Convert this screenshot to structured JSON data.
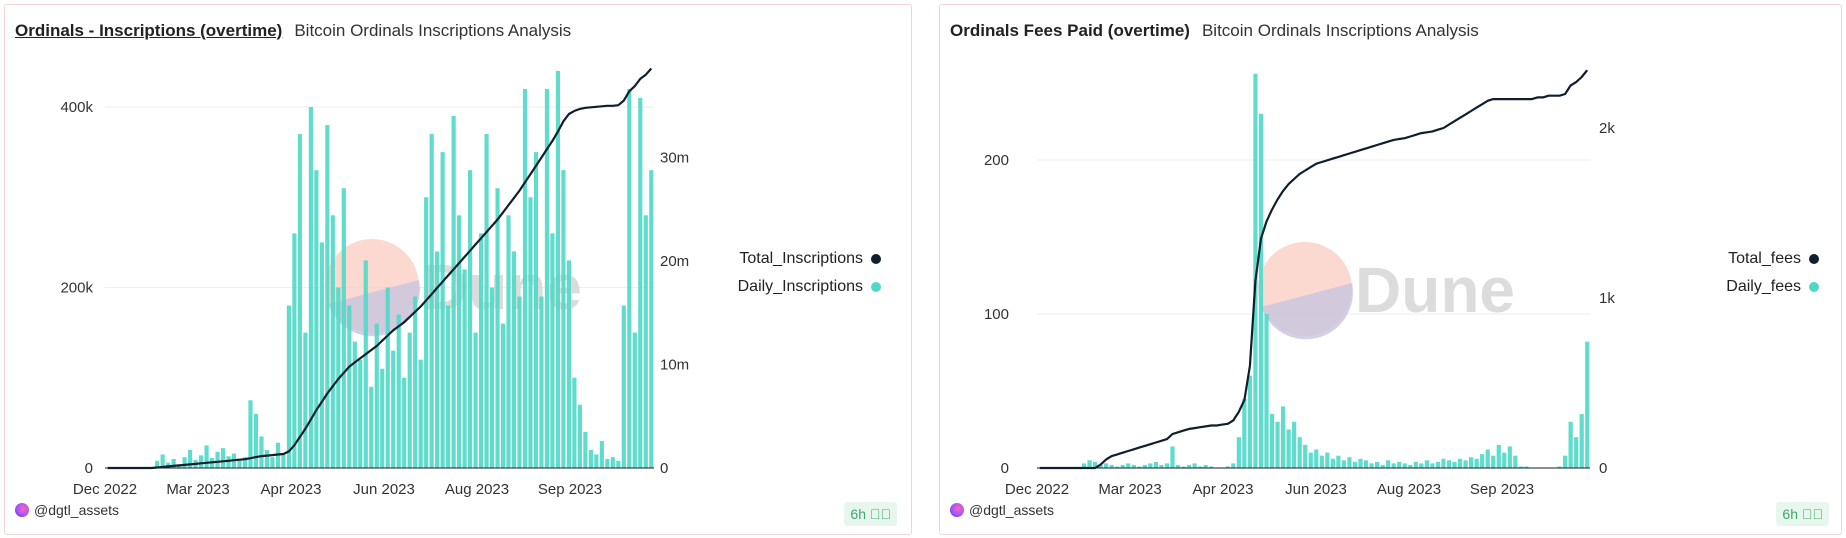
{
  "colors": {
    "daily": "#4fd8c8",
    "total": "#0f1f2e",
    "badge_text": "#3aa86b",
    "border": "#f1d6d6"
  },
  "panels": [
    {
      "title": "Ordinals - Inscriptions (overtime)",
      "subtitle": "Bitcoin Ordinals Inscriptions Analysis",
      "author": "@dgtl_assets",
      "refresh": "6h",
      "watermark": "Dune",
      "legend": [
        "Total_Inscriptions",
        "Daily_Inscriptions"
      ],
      "left_ticks": [
        "0",
        "200k",
        "400k"
      ],
      "right_ticks": [
        "0",
        "10m",
        "20m",
        "30m"
      ],
      "x_ticks": [
        "Dec 2022",
        "Mar 2023",
        "Apr 2023",
        "Jun 2023",
        "Aug 2023",
        "Sep 2023"
      ]
    },
    {
      "title": "Ordinals Fees Paid (overtime)",
      "subtitle": "Bitcoin Ordinals Inscriptions Analysis",
      "author": "@dgtl_assets",
      "refresh": "6h",
      "watermark": "Dune",
      "legend": [
        "Total_fees",
        "Daily_fees"
      ],
      "left_ticks": [
        "0",
        "100",
        "200"
      ],
      "right_ticks": [
        "0",
        "1k",
        "2k"
      ],
      "x_ticks": [
        "Dec 2022",
        "Mar 2023",
        "Apr 2023",
        "Jun 2023",
        "Aug 2023",
        "Sep 2023"
      ]
    }
  ],
  "chart_data": [
    {
      "type": "bar+line",
      "title": "Ordinals - Inscriptions (overtime)",
      "x_tick_labels": [
        "Dec 2022",
        "Mar 2023",
        "Apr 2023",
        "Jun 2023",
        "Aug 2023",
        "Sep 2023"
      ],
      "left_axis": {
        "ticks": [
          0,
          200000,
          400000
        ],
        "range": [
          0,
          440000
        ]
      },
      "right_axis": {
        "ticks": [
          0,
          10000000,
          20000000,
          30000000
        ],
        "range": [
          0,
          39000000
        ]
      },
      "grid": true,
      "legend_placement": "right",
      "series": [
        {
          "name": "Daily_Inscriptions",
          "type": "bar",
          "axis": "left",
          "unit": "thousands",
          "values": [
            0,
            0,
            0,
            0,
            0,
            0,
            0,
            0,
            0,
            8,
            15,
            6,
            10,
            4,
            12,
            20,
            9,
            14,
            25,
            11,
            18,
            22,
            13,
            16,
            10,
            12,
            75,
            60,
            35,
            20,
            12,
            28,
            15,
            180,
            260,
            370,
            150,
            400,
            330,
            250,
            380,
            280,
            200,
            310,
            180,
            140,
            120,
            230,
            90,
            160,
            110,
            200,
            130,
            170,
            100,
            150,
            190,
            120,
            300,
            370,
            240,
            350,
            180,
            390,
            280,
            220,
            330,
            150,
            260,
            370,
            200,
            310,
            160,
            280,
            240,
            190,
            420,
            300,
            350,
            190,
            420,
            260,
            440,
            330,
            230,
            100,
            70,
            40,
            20,
            15,
            30,
            10,
            12,
            8,
            180,
            420,
            150,
            410,
            280,
            330
          ]
        },
        {
          "name": "Total_Inscriptions",
          "type": "line",
          "axis": "right",
          "unit": "millions",
          "values": [
            0,
            0,
            0,
            0,
            0,
            0,
            0,
            0,
            0,
            0.05,
            0.1,
            0.15,
            0.2,
            0.25,
            0.3,
            0.35,
            0.4,
            0.45,
            0.5,
            0.55,
            0.6,
            0.65,
            0.7,
            0.75,
            0.8,
            0.85,
            0.95,
            1.05,
            1.15,
            1.2,
            1.25,
            1.3,
            1.35,
            1.6,
            2.2,
            3,
            3.8,
            4.7,
            5.6,
            6.4,
            7.2,
            7.9,
            8.6,
            9.2,
            9.8,
            10.2,
            10.6,
            11,
            11.4,
            11.8,
            12.3,
            12.8,
            13.3,
            13.7,
            14.1,
            14.6,
            15.1,
            15.6,
            16.2,
            16.8,
            17.4,
            18,
            18.6,
            19.2,
            19.8,
            20.4,
            21,
            21.6,
            22.2,
            22.8,
            23.4,
            24,
            24.7,
            25.4,
            26.1,
            26.8,
            27.6,
            28.4,
            29.2,
            30,
            30.8,
            31.6,
            32.5,
            33.5,
            34.2,
            34.5,
            34.7,
            34.8,
            34.85,
            34.9,
            34.95,
            35,
            35,
            35.05,
            35.5,
            36.4,
            36.9,
            37.6,
            38,
            38.6
          ]
        }
      ]
    },
    {
      "type": "bar+line",
      "title": "Ordinals Fees Paid (overtime)",
      "x_tick_labels": [
        "Dec 2022",
        "Mar 2023",
        "Apr 2023",
        "Jun 2023",
        "Aug 2023",
        "Sep 2023"
      ],
      "left_axis": {
        "ticks": [
          0,
          100,
          200
        ],
        "range": [
          0,
          265
        ]
      },
      "right_axis": {
        "ticks": [
          0,
          1000,
          2000
        ],
        "range": [
          0,
          2380
        ]
      },
      "grid": true,
      "legend_placement": "right",
      "series": [
        {
          "name": "Daily_fees",
          "type": "bar",
          "axis": "left",
          "values": [
            0,
            0,
            0,
            0,
            0,
            0,
            0,
            0,
            3,
            5,
            4,
            2,
            3,
            2,
            1,
            2,
            3,
            2,
            1,
            2,
            3,
            4,
            2,
            3,
            14,
            2,
            1,
            2,
            3,
            1,
            2,
            1,
            0,
            0,
            1,
            3,
            20,
            45,
            60,
            256,
            230,
            100,
            35,
            30,
            40,
            25,
            30,
            20,
            15,
            10,
            12,
            8,
            10,
            6,
            8,
            5,
            7,
            4,
            6,
            5,
            3,
            4,
            2,
            5,
            3,
            4,
            3,
            2,
            4,
            3,
            5,
            3,
            4,
            6,
            5,
            4,
            6,
            5,
            7,
            6,
            9,
            12,
            8,
            15,
            10,
            14,
            8,
            1,
            1,
            0,
            0,
            0,
            0,
            0,
            1,
            8,
            30,
            20,
            35,
            82
          ]
        },
        {
          "name": "Total_fees",
          "type": "line",
          "axis": "right",
          "unit": "thousands",
          "values": [
            0,
            0,
            0,
            0,
            0,
            0,
            0,
            0,
            0,
            0,
            0,
            0.02,
            0.05,
            0.07,
            0.08,
            0.09,
            0.1,
            0.11,
            0.12,
            0.13,
            0.14,
            0.15,
            0.16,
            0.17,
            0.2,
            0.21,
            0.22,
            0.23,
            0.235,
            0.24,
            0.245,
            0.25,
            0.25,
            0.255,
            0.26,
            0.28,
            0.33,
            0.4,
            0.6,
            1.1,
            1.35,
            1.45,
            1.52,
            1.58,
            1.63,
            1.67,
            1.7,
            1.73,
            1.75,
            1.77,
            1.79,
            1.8,
            1.81,
            1.82,
            1.83,
            1.84,
            1.85,
            1.86,
            1.87,
            1.88,
            1.89,
            1.9,
            1.91,
            1.92,
            1.93,
            1.935,
            1.94,
            1.95,
            1.96,
            1.97,
            1.975,
            1.98,
            1.99,
            2.0,
            2.02,
            2.04,
            2.06,
            2.08,
            2.1,
            2.12,
            2.14,
            2.16,
            2.17,
            2.17,
            2.17,
            2.17,
            2.17,
            2.17,
            2.17,
            2.17,
            2.18,
            2.18,
            2.19,
            2.19,
            2.19,
            2.2,
            2.25,
            2.27,
            2.3,
            2.34
          ]
        }
      ]
    }
  ]
}
